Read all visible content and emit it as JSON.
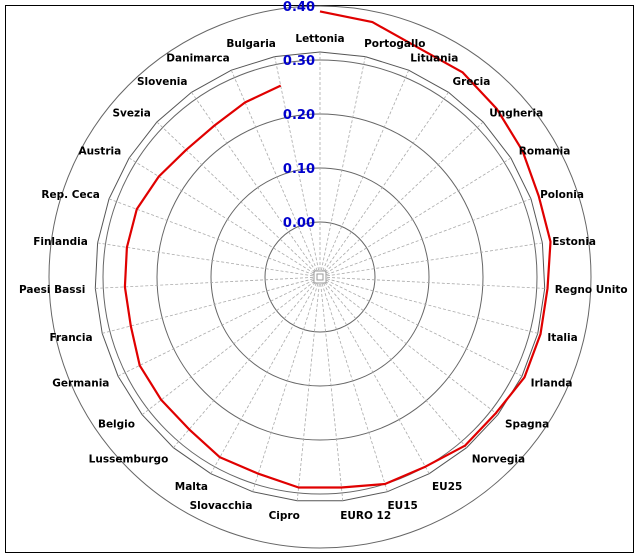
{
  "chart_data": {
    "type": "radar",
    "title": "",
    "categories": [
      "Lettonia",
      "Portogallo",
      "Lituania",
      "Grecia",
      "Ungheria",
      "Romania",
      "Polonia",
      "Estonia",
      "Regno Unito",
      "Italia",
      "Irlanda",
      "Spagna",
      "Norvegia",
      "EU25",
      "EU15",
      "EURO 12",
      "Cipro",
      "Slovacchia",
      "Malta",
      "Lussemburgo",
      "Belgio",
      "Germania",
      "Francia",
      "Paesi Bassi",
      "Finlandia",
      "Rep. Ceca",
      "Austria",
      "Svezia",
      "Slovenia",
      "Danimarca",
      "Bulgaria"
    ],
    "series": [
      {
        "values": [
          0.39,
          0.38,
          0.36,
          0.36,
          0.35,
          0.34,
          0.33,
          0.33,
          0.32,
          0.32,
          0.32,
          0.31,
          0.31,
          0.3,
          0.3,
          0.29,
          0.29,
          0.28,
          0.28,
          0.27,
          0.27,
          0.27,
          0.26,
          0.26,
          0.26,
          0.26,
          0.25,
          0.24,
          0.24,
          0.25,
          0.26
        ],
        "color": "#e00000"
      }
    ],
    "radial_ticks": [
      "0.00",
      "0.10",
      "0.20",
      "0.30",
      "0.40"
    ],
    "rlim": [
      0,
      0.4
    ],
    "tick_color": "#0000cc",
    "grid": true
  }
}
